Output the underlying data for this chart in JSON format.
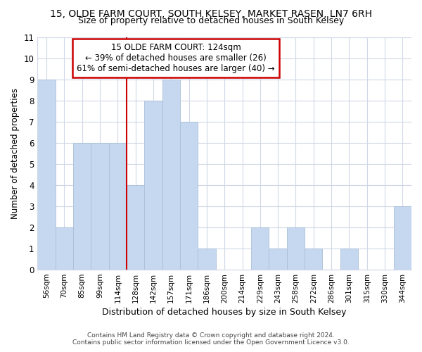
{
  "title": "15, OLDE FARM COURT, SOUTH KELSEY, MARKET RASEN, LN7 6RH",
  "subtitle": "Size of property relative to detached houses in South Kelsey",
  "xlabel": "Distribution of detached houses by size in South Kelsey",
  "ylabel": "Number of detached properties",
  "categories": [
    "56sqm",
    "70sqm",
    "85sqm",
    "99sqm",
    "114sqm",
    "128sqm",
    "142sqm",
    "157sqm",
    "171sqm",
    "186sqm",
    "200sqm",
    "214sqm",
    "229sqm",
    "243sqm",
    "258sqm",
    "272sqm",
    "286sqm",
    "301sqm",
    "315sqm",
    "330sqm",
    "344sqm"
  ],
  "values": [
    9,
    2,
    6,
    6,
    6,
    4,
    8,
    9,
    7,
    1,
    0,
    0,
    2,
    1,
    2,
    1,
    0,
    1,
    0,
    0,
    3
  ],
  "bar_color": "#c5d8ef",
  "bar_edge_color": "#aabfd8",
  "grid_color": "#d0d8e8",
  "background_color": "#ffffff",
  "annotation_text_line1": "15 OLDE FARM COURT: 124sqm",
  "annotation_text_line2": "← 39% of detached houses are smaller (26)",
  "annotation_text_line3": "61% of semi-detached houses are larger (40) →",
  "annotation_box_facecolor": "#ffffff",
  "annotation_border_color": "#cc0000",
  "vline_color": "#cc0000",
  "vline_x_index": 4.5,
  "ylim": [
    0,
    11
  ],
  "yticks": [
    0,
    1,
    2,
    3,
    4,
    5,
    6,
    7,
    8,
    9,
    10,
    11
  ],
  "footer_line1": "Contains HM Land Registry data © Crown copyright and database right 2024.",
  "footer_line2": "Contains public sector information licensed under the Open Government Licence v3.0."
}
